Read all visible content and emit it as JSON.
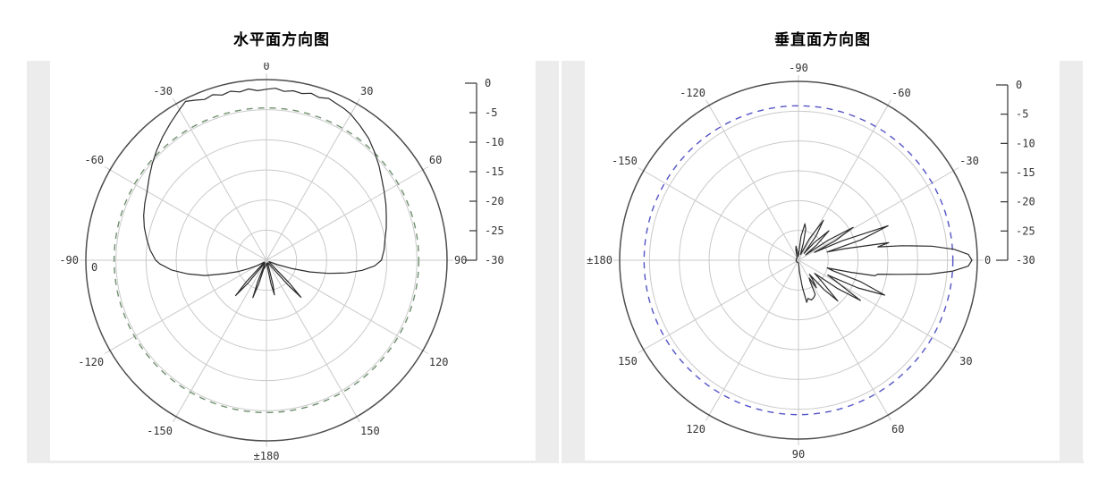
{
  "page": {
    "background": "#ffffff",
    "cell_border_color": "#ececec"
  },
  "colors": {
    "outer_circle": "#4d4d4d",
    "grid": "#c9c9c9",
    "trace": "#2b2b2b",
    "label": "#333333",
    "ref_dashed_left": "#6f8f6f",
    "ref_dashed_right": "#5353c6"
  },
  "chart_data": [
    {
      "type": "line",
      "polar": true,
      "title": "水平面方向图",
      "zero_location": "top",
      "direction": "clockwise",
      "r_axis": {
        "min": -30,
        "max": 0,
        "tick_step": 5,
        "tick_labels": [
          "0",
          "-5",
          "-10",
          "-15",
          "-20",
          "-25",
          "-30"
        ]
      },
      "reference_db": -4.7,
      "ref_color_key": "ref_dashed_left",
      "angle_ticks": [
        {
          "angle": 0,
          "label": "0"
        },
        {
          "angle": 30,
          "label": "30"
        },
        {
          "angle": 60,
          "label": "60"
        },
        {
          "angle": 90,
          "label": "90"
        },
        {
          "angle": 120,
          "label": "120"
        },
        {
          "angle": 150,
          "label": "150"
        },
        {
          "angle": 180,
          "label": "±180"
        },
        {
          "angle": -150,
          "label": "-150"
        },
        {
          "angle": -120,
          "label": "-120"
        },
        {
          "angle": -90,
          "label": "-90"
        },
        {
          "angle": -60,
          "label": "-60"
        },
        {
          "angle": -30,
          "label": "-30"
        }
      ],
      "extra_labels": [
        {
          "text": "0",
          "position": "outer-left-inside"
        }
      ],
      "series": [
        {
          "name": "horizontal-pattern-dB",
          "points": [
            [
              -180,
              -29.5
            ],
            [
              -172,
              -29.2
            ],
            [
              -166,
              -28.6
            ],
            [
              -163,
              -29
            ],
            [
              -162,
              -26
            ],
            [
              -160,
              -23.4
            ],
            [
              -158,
              -26
            ],
            [
              -155,
              -29.3
            ],
            [
              -148,
              -29.5
            ],
            [
              -143,
              -28.5
            ],
            [
              -141,
              -25
            ],
            [
              -139,
              -22.2
            ],
            [
              -137,
              -25
            ],
            [
              -135,
              -29
            ],
            [
              -130,
              -29.5
            ],
            [
              -125,
              -29.2
            ],
            [
              -120,
              -28.2
            ],
            [
              -115,
              -26.6
            ],
            [
              -112,
              -25
            ],
            [
              -108,
              -22.8
            ],
            [
              -104,
              -19.5
            ],
            [
              -100,
              -16.8
            ],
            [
              -96,
              -14.2
            ],
            [
              -92,
              -12.3
            ],
            [
              -90,
              -11.6
            ],
            [
              -85,
              -10.6
            ],
            [
              -80,
              -9.8
            ],
            [
              -75,
              -9
            ],
            [
              -70,
              -8.3
            ],
            [
              -65,
              -7.7
            ],
            [
              -60,
              -7.1
            ],
            [
              -55,
              -6.2
            ],
            [
              -50,
              -5.2
            ],
            [
              -45,
              -4.2
            ],
            [
              -40,
              -3.2
            ],
            [
              -35,
              -2.2
            ],
            [
              -30,
              -1.1
            ],
            [
              -27,
              -0.4
            ],
            [
              -24,
              -0.9
            ],
            [
              -21,
              -1.4
            ],
            [
              -18,
              -1.1
            ],
            [
              -15,
              -1.6
            ],
            [
              -12,
              -1.3
            ],
            [
              -9,
              -1.7
            ],
            [
              -6,
              -1.4
            ],
            [
              -3,
              -1.8
            ],
            [
              0,
              -1.6
            ],
            [
              3,
              -1.4
            ],
            [
              6,
              -1.8
            ],
            [
              9,
              -1.5
            ],
            [
              12,
              -1.7
            ],
            [
              15,
              -1.3
            ],
            [
              18,
              -1.6
            ],
            [
              21,
              -1.2
            ],
            [
              24,
              -1.5
            ],
            [
              27,
              -1.7
            ],
            [
              30,
              -2
            ],
            [
              35,
              -2.8
            ],
            [
              40,
              -3.6
            ],
            [
              45,
              -4.6
            ],
            [
              50,
              -5.6
            ],
            [
              55,
              -6.6
            ],
            [
              60,
              -7.4
            ],
            [
              65,
              -8.1
            ],
            [
              70,
              -8.8
            ],
            [
              75,
              -9.4
            ],
            [
              80,
              -10
            ],
            [
              85,
              -10.4
            ],
            [
              90,
              -10.9
            ],
            [
              93,
              -12
            ],
            [
              96,
              -14
            ],
            [
              99,
              -16.5
            ],
            [
              102,
              -19.5
            ],
            [
              105,
              -22.5
            ],
            [
              108,
              -25.5
            ],
            [
              112,
              -28
            ],
            [
              118,
              -29.5
            ],
            [
              125,
              -29.4
            ],
            [
              130,
              -29
            ],
            [
              133,
              -28
            ],
            [
              135,
              -24.5
            ],
            [
              137,
              -21.6
            ],
            [
              139,
              -24.5
            ],
            [
              142,
              -28.5
            ],
            [
              147,
              -29.5
            ],
            [
              152,
              -29.5
            ],
            [
              158,
              -29.4
            ],
            [
              163,
              -28.5
            ],
            [
              165,
              -25.8
            ],
            [
              167,
              -24.1
            ],
            [
              169,
              -26
            ],
            [
              172,
              -29
            ],
            [
              177,
              -29.5
            ],
            [
              180,
              -29.5
            ]
          ]
        }
      ]
    },
    {
      "type": "line",
      "polar": true,
      "title": "垂直面方向图",
      "zero_location": "right",
      "direction": "clockwise",
      "r_axis": {
        "min": -30,
        "max": 0,
        "tick_step": 5,
        "tick_labels": [
          "0",
          "-5",
          "-10",
          "-15",
          "-20",
          "-25",
          "-30"
        ]
      },
      "reference_db": -4.1,
      "ref_color_key": "ref_dashed_right",
      "angle_ticks": [
        {
          "angle": -90,
          "label": "-90"
        },
        {
          "angle": -60,
          "label": "-60"
        },
        {
          "angle": -30,
          "label": "-30"
        },
        {
          "angle": 0,
          "label": "0"
        },
        {
          "angle": 30,
          "label": "30"
        },
        {
          "angle": 60,
          "label": "60"
        },
        {
          "angle": 90,
          "label": "90"
        },
        {
          "angle": 120,
          "label": "120"
        },
        {
          "angle": 150,
          "label": "150"
        },
        {
          "angle": 180,
          "label": "±180"
        },
        {
          "angle": -150,
          "label": "-150"
        },
        {
          "angle": -120,
          "label": "-120"
        }
      ],
      "extra_labels": [],
      "series": [
        {
          "name": "vertical-pattern-dB",
          "points": [
            [
              -180,
              -29.6
            ],
            [
              -160,
              -29.6
            ],
            [
              -140,
              -29.6
            ],
            [
              -120,
              -29.5
            ],
            [
              -110,
              -29.2
            ],
            [
              -104,
              -28.2
            ],
            [
              -100,
              -27.6
            ],
            [
              -97,
              -28.6
            ],
            [
              -93,
              -29.4
            ],
            [
              -88,
              -29
            ],
            [
              -84,
              -26
            ],
            [
              -80,
              -23.8
            ],
            [
              -77,
              -24.6
            ],
            [
              -74,
              -27
            ],
            [
              -71,
              -29
            ],
            [
              -67,
              -28.6
            ],
            [
              -63,
              -26
            ],
            [
              -58,
              -22.1
            ],
            [
              -54,
              -25
            ],
            [
              -51,
              -28.5
            ],
            [
              -48,
              -26
            ],
            [
              -44,
              -22.9
            ],
            [
              -40,
              -26
            ],
            [
              -37,
              -28.5
            ],
            [
              -34,
              -24
            ],
            [
              -31,
              -19.3
            ],
            [
              -28,
              -23
            ],
            [
              -26,
              -27
            ],
            [
              -24,
              -22
            ],
            [
              -21,
              -13.9
            ],
            [
              -18,
              -19
            ],
            [
              -16,
              -25
            ],
            [
              -14,
              -22
            ],
            [
              -11,
              -14.6
            ],
            [
              -9.5,
              -16.5
            ],
            [
              -8,
              -12.5
            ],
            [
              -6,
              -7.5
            ],
            [
              -4,
              -3.8
            ],
            [
              -2,
              -1.5
            ],
            [
              0,
              -0.9
            ],
            [
              2,
              -1.5
            ],
            [
              4,
              -4
            ],
            [
              6,
              -7.8
            ],
            [
              8,
              -13
            ],
            [
              10,
              -16.5
            ],
            [
              11.5,
              -16.9
            ],
            [
              13,
              -21
            ],
            [
              15,
              -25
            ],
            [
              17,
              -24
            ],
            [
              19,
              -19
            ],
            [
              22,
              -14.4
            ],
            [
              25,
              -19
            ],
            [
              27,
              -24.5
            ],
            [
              29,
              -23
            ],
            [
              33,
              -17.6
            ],
            [
              36,
              -22
            ],
            [
              39,
              -26.5
            ],
            [
              42,
              -25
            ],
            [
              46,
              -20.5
            ],
            [
              49,
              -23.5
            ],
            [
              52,
              -27
            ],
            [
              54,
              -26
            ],
            [
              57,
              -24.5
            ],
            [
              59,
              -26.5
            ],
            [
              61,
              -26
            ],
            [
              64,
              -23.6
            ],
            [
              68,
              -23.2
            ],
            [
              72,
              -23
            ],
            [
              76,
              -23.4
            ],
            [
              79,
              -22.8
            ],
            [
              82,
              -25.5
            ],
            [
              85,
              -28
            ],
            [
              89,
              -29.5
            ],
            [
              100,
              -29.6
            ],
            [
              120,
              -29.6
            ],
            [
              140,
              -29.6
            ],
            [
              160,
              -29.6
            ],
            [
              180,
              -29.6
            ]
          ]
        }
      ]
    }
  ]
}
